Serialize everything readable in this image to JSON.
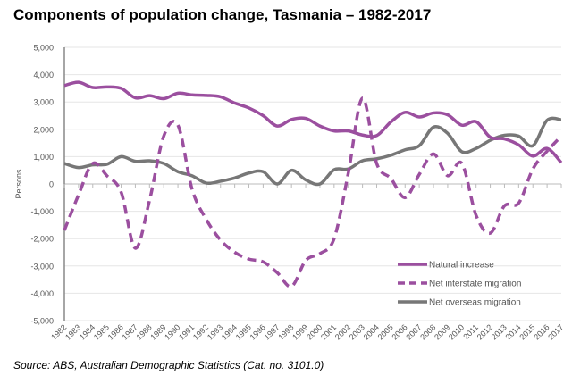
{
  "chart_data": {
    "type": "line",
    "title": "Components of population change, Tasmania – 1982-2017",
    "source": "Source:  ABS, Australian Demographic Statistics (Cat. no. 3101.0)",
    "ylabel": "Persons",
    "xlabel": "",
    "ylim": [
      -5000,
      5000
    ],
    "yticks": [
      -5000,
      -4000,
      -3000,
      -2000,
      -1000,
      0,
      1000,
      2000,
      3000,
      4000,
      5000
    ],
    "ytick_labels": [
      "-5,000",
      "-4,000",
      "-3,000",
      "-2,000",
      "-1,000",
      "0",
      "1,000",
      "2,000",
      "3,000",
      "4,000",
      "5,000"
    ],
    "grid": "horizontal",
    "legend": "bottom-right",
    "x": [
      "1982",
      "1983",
      "1984",
      "1985",
      "1986",
      "1987",
      "1988",
      "1989",
      "1990",
      "1991",
      "1992",
      "1993",
      "1994",
      "1995",
      "1996",
      "1997",
      "1998",
      "1999",
      "2000",
      "2001",
      "2002",
      "2003",
      "2004",
      "2005",
      "2006",
      "2007",
      "2008",
      "2009",
      "2010",
      "2011",
      "2012",
      "2013",
      "2014",
      "2015",
      "2016",
      "2017"
    ],
    "series": [
      {
        "name": "Natural increase",
        "color": "#9b4f9f",
        "style": "solid",
        "values": [
          3600,
          3720,
          3530,
          3550,
          3500,
          3150,
          3230,
          3120,
          3320,
          3260,
          3240,
          3190,
          2960,
          2780,
          2500,
          2120,
          2360,
          2400,
          2120,
          1940,
          1940,
          1790,
          1770,
          2270,
          2620,
          2450,
          2600,
          2530,
          2150,
          2280,
          1710,
          1650,
          1430,
          1020,
          1300,
          780
        ]
      },
      {
        "name": "Net interstate migration",
        "color": "#9b4f9f",
        "style": "dashed",
        "values": [
          -1700,
          -400,
          750,
          300,
          -300,
          -2350,
          -600,
          1750,
          2150,
          -200,
          -1300,
          -2050,
          -2500,
          -2750,
          -2850,
          -3250,
          -3750,
          -2800,
          -2550,
          -2000,
          400,
          3140,
          750,
          200,
          -500,
          350,
          1100,
          300,
          750,
          -1150,
          -1800,
          -800,
          -700,
          550,
          1200,
          1750
        ]
      },
      {
        "name": "Net overseas migration",
        "color": "#777777",
        "style": "solid",
        "values": [
          750,
          600,
          700,
          720,
          1000,
          830,
          850,
          750,
          450,
          300,
          30,
          100,
          220,
          400,
          450,
          0,
          500,
          150,
          0,
          520,
          550,
          850,
          920,
          1050,
          1250,
          1400,
          2080,
          1850,
          1180,
          1300,
          1600,
          1780,
          1750,
          1400,
          2330,
          2350
        ]
      }
    ]
  }
}
